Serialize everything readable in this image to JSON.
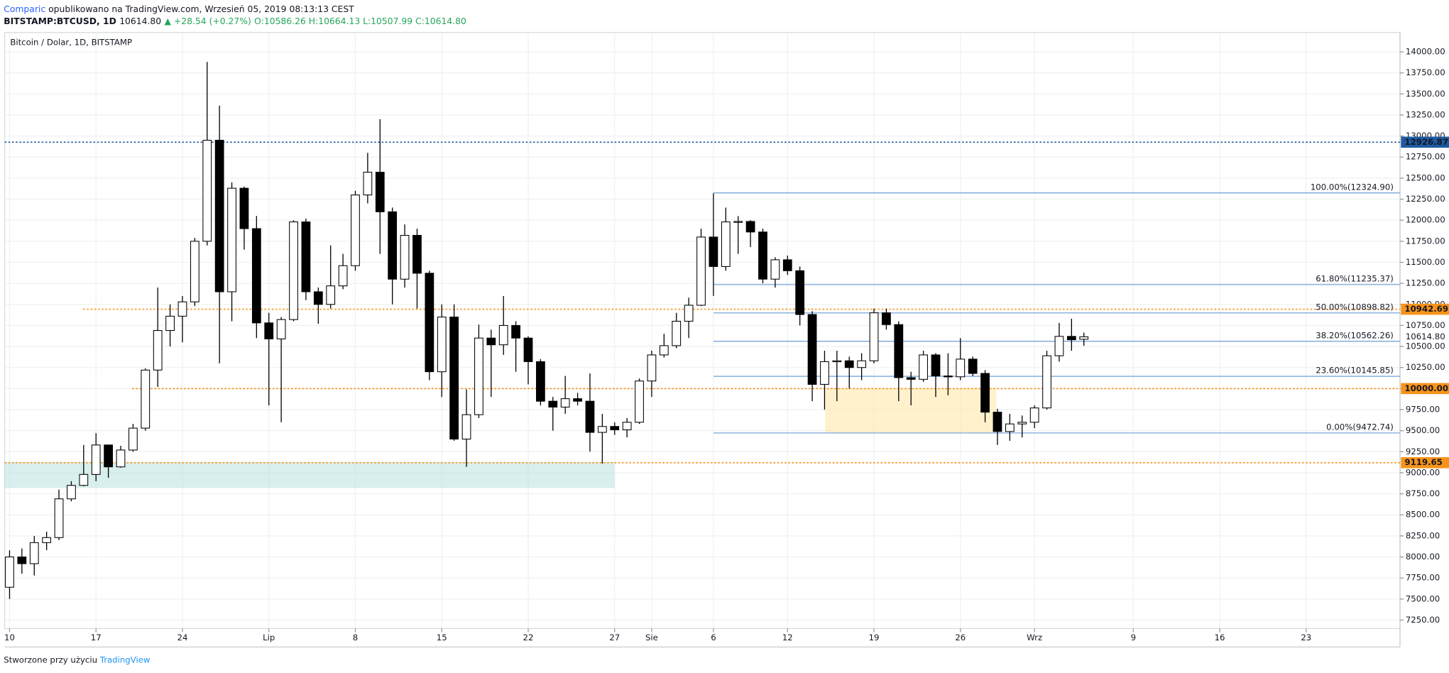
{
  "header": {
    "author": "Comparic",
    "published": "opublikowano na TradingView.com, Wrzesień 05, 2019 08:13:13 CEST",
    "symbol": "BITSTAMP:BTCUSD, 1D",
    "price": "10614.80",
    "change": "▲ +28.54 (+0.27%)",
    "ohlc": "O:10586.26 H:10664.13 L:10507.99 C:10614.80"
  },
  "footer": {
    "text": "Stworzone przy użyciu",
    "brand": "TradingView"
  },
  "chart_data": {
    "type": "candlestick",
    "title": "Bitcoin / Dolar, 1D, BITSTAMP",
    "candles": {
      "open": [
        7640,
        8000,
        7920,
        8170,
        8230,
        8690,
        8850,
        8980,
        9330,
        9070,
        9270,
        9530,
        10220,
        10690,
        10860,
        11030,
        11750,
        12950,
        11150,
        12380,
        11900,
        10780,
        10590,
        10820,
        11980,
        11150,
        11000,
        11220,
        11460,
        12300,
        12570,
        12100,
        11300,
        11820,
        11370,
        10200,
        10850,
        9400,
        9690,
        10600,
        10520,
        10750,
        10600,
        10320,
        9850,
        9780,
        9880,
        9850,
        9480,
        9550,
        9510,
        9600,
        10090,
        10400,
        10510,
        10800,
        10990,
        11800,
        11450,
        11980,
        11985,
        11860,
        11300,
        11530,
        11400,
        10880,
        10050,
        10320,
        10330,
        10250,
        10330,
        10900,
        10760,
        10130,
        10110,
        10400,
        10150,
        10140,
        10350,
        10180,
        9720,
        9490,
        9580,
        9600,
        9770,
        10390,
        10620,
        10586.26
      ],
      "high": [
        8080,
        8100,
        8250,
        8300,
        8800,
        8900,
        9330,
        9470,
        9330,
        9320,
        9580,
        10240,
        11200,
        11000,
        11100,
        11790,
        13880,
        13360,
        12450,
        12400,
        12050,
        10900,
        10850,
        12000,
        12020,
        11200,
        11700,
        11600,
        12350,
        12800,
        13200,
        12150,
        11950,
        11900,
        11400,
        11000,
        11000,
        9990,
        10760,
        10700,
        11100,
        10800,
        10620,
        10350,
        9900,
        10150,
        9950,
        10180,
        9700,
        9600,
        9650,
        10120,
        10450,
        10650,
        10900,
        11080,
        11900,
        12320,
        12150,
        12050,
        12000,
        11900,
        11560,
        11580,
        11450,
        10920,
        10450,
        10450,
        10380,
        10420,
        10950,
        10950,
        10800,
        10200,
        10450,
        10420,
        10420,
        10600,
        10380,
        10220,
        9760,
        9700,
        9680,
        9800,
        10450,
        10780,
        10830,
        10664.13
      ],
      "low": [
        7500,
        7800,
        7780,
        8080,
        8200,
        8660,
        8840,
        8900,
        8940,
        9060,
        9250,
        9500,
        10020,
        10500,
        10550,
        10980,
        11700,
        10300,
        10800,
        11650,
        10600,
        9800,
        9600,
        10800,
        11050,
        10770,
        10950,
        11180,
        11400,
        12200,
        11600,
        11000,
        11200,
        10950,
        10100,
        9900,
        9380,
        9070,
        9650,
        9900,
        10400,
        10200,
        10050,
        9800,
        9500,
        9700,
        9800,
        9250,
        9110,
        9450,
        9420,
        9580,
        9900,
        10370,
        10480,
        10600,
        10980,
        11100,
        11400,
        11600,
        11680,
        11250,
        11200,
        11350,
        10750,
        9850,
        9750,
        9850,
        10000,
        10100,
        10300,
        10700,
        9850,
        9800,
        10080,
        9900,
        9920,
        10100,
        10150,
        9600,
        9330,
        9380,
        9420,
        9530,
        9750,
        10320,
        10450,
        10507.99
      ],
      "close": [
        8000,
        7920,
        8170,
        8230,
        8690,
        8850,
        8980,
        9330,
        9070,
        9270,
        9530,
        10220,
        10690,
        10860,
        11030,
        11750,
        12950,
        11150,
        12380,
        11900,
        10780,
        10590,
        10820,
        11980,
        11150,
        11000,
        11220,
        11460,
        12300,
        12570,
        12100,
        11300,
        11820,
        11370,
        10200,
        10850,
        9400,
        9690,
        10600,
        10520,
        10750,
        10600,
        10320,
        9850,
        9780,
        9880,
        9850,
        9480,
        9550,
        9510,
        9600,
        10090,
        10400,
        10510,
        10800,
        10990,
        11800,
        11450,
        11980,
        11985,
        11860,
        11300,
        11530,
        11400,
        10880,
        10050,
        10320,
        10330,
        10250,
        10330,
        10900,
        10760,
        10130,
        10110,
        10400,
        10150,
        10140,
        10350,
        10180,
        9720,
        9490,
        9580,
        9600,
        9770,
        10390,
        10620,
        10580,
        10614.8
      ]
    },
    "up_color": "#ffffff",
    "down_color": "#000000",
    "xlim": [
      -0.4,
      112.6
    ],
    "xticks": [
      {
        "value": 0,
        "label": "10"
      },
      {
        "value": 7,
        "label": "17"
      },
      {
        "value": 14,
        "label": "24"
      },
      {
        "value": 21,
        "label": "Lip"
      },
      {
        "value": 28,
        "label": "8"
      },
      {
        "value": 35,
        "label": "15"
      },
      {
        "value": 42,
        "label": "22"
      },
      {
        "value": 49,
        "label": "27"
      },
      {
        "value": 52,
        "label": "Sie"
      },
      {
        "value": 57,
        "label": "6"
      },
      {
        "value": 63,
        "label": "12"
      },
      {
        "value": 70,
        "label": "19"
      },
      {
        "value": 77,
        "label": "26"
      },
      {
        "value": 83,
        "label": "Wrz"
      },
      {
        "value": 91,
        "label": "9"
      },
      {
        "value": 98,
        "label": "16"
      },
      {
        "value": 105,
        "label": "23"
      }
    ],
    "ylim": [
      7150,
      14230
    ],
    "yticks": [
      {
        "value": 7250,
        "label": "7250.00"
      },
      {
        "value": 7500,
        "label": "7500.00"
      },
      {
        "value": 7750,
        "label": "7750.00"
      },
      {
        "value": 8000,
        "label": "8000.00"
      },
      {
        "value": 8250,
        "label": "8250.00"
      },
      {
        "value": 8500,
        "label": "8500.00"
      },
      {
        "value": 8750,
        "label": "8750.00"
      },
      {
        "value": 9000,
        "label": "9000.00"
      },
      {
        "value": 9250,
        "label": "9250.00"
      },
      {
        "value": 9500,
        "label": "9500.00"
      },
      {
        "value": 9750,
        "label": "9750.00"
      },
      {
        "value": 10000,
        "label": "10000.00"
      },
      {
        "value": 10250,
        "label": "10250.00"
      },
      {
        "value": 10500,
        "label": "10500.00"
      },
      {
        "value": 10750,
        "label": "10750.00"
      },
      {
        "value": 11000,
        "label": "11000.00"
      },
      {
        "value": 11250,
        "label": "11250.00"
      },
      {
        "value": 11500,
        "label": "11500.00"
      },
      {
        "value": 11750,
        "label": "11750.00"
      },
      {
        "value": 12000,
        "label": "12000.00"
      },
      {
        "value": 12250,
        "label": "12250.00"
      },
      {
        "value": 12500,
        "label": "12500.00"
      },
      {
        "value": 12750,
        "label": "12750.00"
      },
      {
        "value": 13000,
        "label": "13000.00"
      },
      {
        "value": 13250,
        "label": "13250.00"
      },
      {
        "value": 13500,
        "label": "13500.00"
      },
      {
        "value": 13750,
        "label": "13750.00"
      },
      {
        "value": 14000,
        "label": "14000.00"
      }
    ],
    "grid": true,
    "levels": [
      {
        "value": 12926.87,
        "label": "12926.87",
        "color": "#1e5aa0"
      },
      {
        "value": 10942.69,
        "label": "10942.69",
        "color": "#f7931a"
      },
      {
        "value": 10000,
        "label": "10000.00",
        "color": "#f7931a"
      },
      {
        "value": 9119.65,
        "label": "9119.65",
        "color": "#f7931a"
      }
    ],
    "price_marker": {
      "value": 10614.8,
      "label": "10614.80"
    },
    "fib": {
      "color": "#7aa6da",
      "levels": [
        {
          "value": 12324.9,
          "label": "100.00%(12324.90)"
        },
        {
          "value": 11235.37,
          "label": "61.80%(11235.37)"
        },
        {
          "value": 10898.82,
          "label": "50.00%(10898.82)"
        },
        {
          "value": 10562.26,
          "label": "38.20%(10562.26)"
        },
        {
          "value": 10145.85,
          "label": "23.60%(10145.85)"
        },
        {
          "value": 9472.74,
          "label": "0.00%(9472.74)"
        }
      ]
    }
  }
}
